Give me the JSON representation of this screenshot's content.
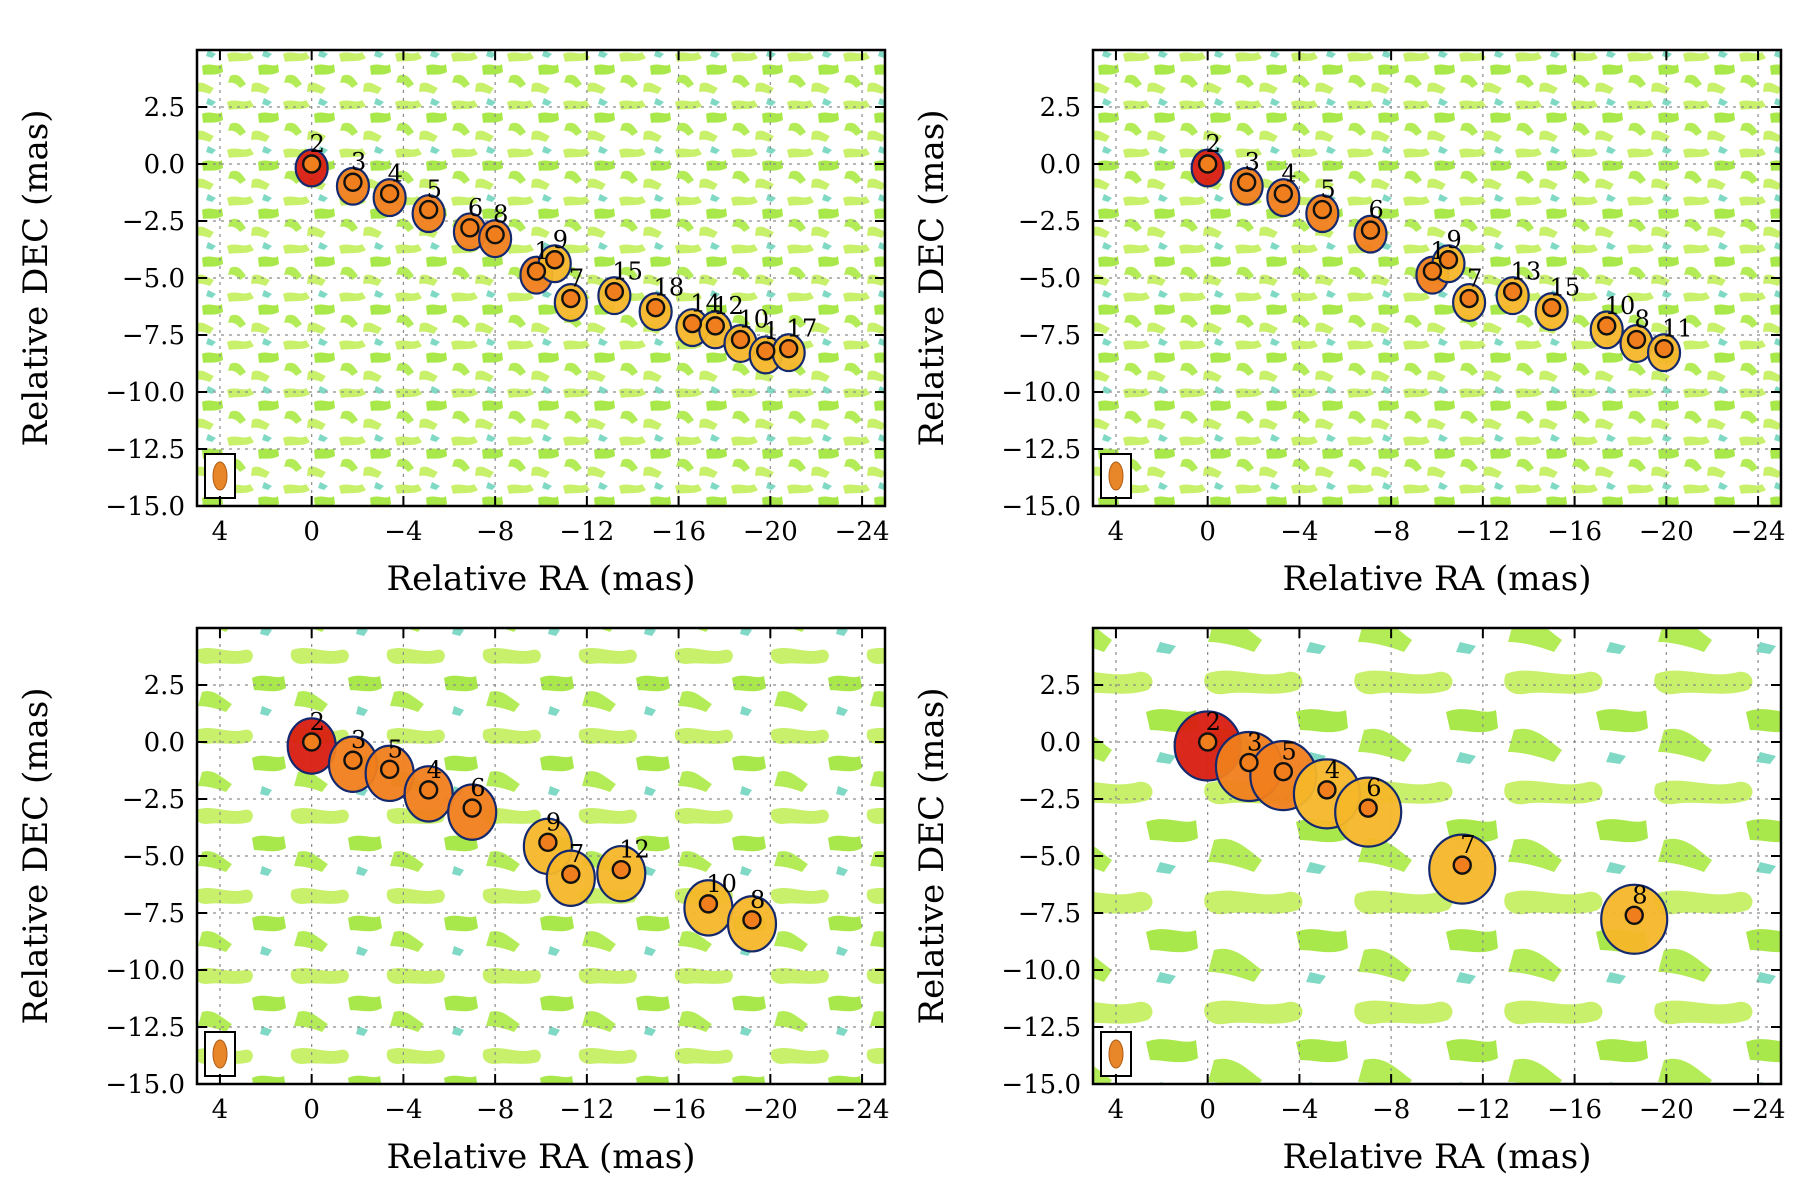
{
  "colors": {
    "noise_light": "#c8f06a",
    "noise_mid": "#a9e84a",
    "noise_cyan": "#7fd9c4",
    "jet_contour": "#14286e",
    "core_red": "#d81e10",
    "component_orange": "#f07e1c",
    "component_yellow": "#f5b629",
    "beam": "#e8872a"
  },
  "chart_data": [
    {
      "type": "scatter",
      "xlabel": "Relative RA (mas)",
      "ylabel": "Relative DEC (mas)",
      "xlim": [
        5,
        -25
      ],
      "ylim": [
        -15,
        5
      ],
      "xticks": [
        "4",
        "0",
        "−4",
        "−8",
        "−12",
        "−16",
        "−20",
        "−24"
      ],
      "yticks": [
        "2.5",
        "0.0",
        "−2.5",
        "−5.0",
        "−7.5",
        "−10.0",
        "−12.5",
        "−15.0"
      ],
      "grid": true,
      "components": [
        {
          "label": "2",
          "x": 0.0,
          "y": 0.0
        },
        {
          "label": "3",
          "x": -1.8,
          "y": -0.8
        },
        {
          "label": "4",
          "x": -3.4,
          "y": -1.3
        },
        {
          "label": "5",
          "x": -5.1,
          "y": -2.0
        },
        {
          "label": "6",
          "x": -6.9,
          "y": -2.8
        },
        {
          "label": "8",
          "x": -8.0,
          "y": -3.1
        },
        {
          "label": "1",
          "x": -9.8,
          "y": -4.7
        },
        {
          "label": "9",
          "x": -10.6,
          "y": -4.2
        },
        {
          "label": "7",
          "x": -11.3,
          "y": -5.9
        },
        {
          "label": "15",
          "x": -13.2,
          "y": -5.6
        },
        {
          "label": "18",
          "x": -15.0,
          "y": -6.3
        },
        {
          "label": "14",
          "x": -16.6,
          "y": -7.0
        },
        {
          "label": "12",
          "x": -17.6,
          "y": -7.1
        },
        {
          "label": "10",
          "x": -18.7,
          "y": -7.7
        },
        {
          "label": "1",
          "x": -19.8,
          "y": -8.2
        },
        {
          "label": "17",
          "x": -20.8,
          "y": -8.1
        }
      ]
    },
    {
      "type": "scatter",
      "xlabel": "Relative RA (mas)",
      "ylabel": "Relative DEC (mas)",
      "xlim": [
        5,
        -25
      ],
      "ylim": [
        -15,
        5
      ],
      "xticks": [
        "4",
        "0",
        "−4",
        "−8",
        "−12",
        "−16",
        "−20",
        "−24"
      ],
      "yticks": [
        "2.5",
        "0.0",
        "−2.5",
        "−5.0",
        "−7.5",
        "−10.0",
        "−12.5",
        "−15.0"
      ],
      "grid": true,
      "components": [
        {
          "label": "2",
          "x": 0.0,
          "y": 0.0
        },
        {
          "label": "3",
          "x": -1.7,
          "y": -0.8
        },
        {
          "label": "4",
          "x": -3.3,
          "y": -1.3
        },
        {
          "label": "5",
          "x": -5.0,
          "y": -2.0
        },
        {
          "label": "6",
          "x": -7.1,
          "y": -2.9
        },
        {
          "label": "1",
          "x": -9.8,
          "y": -4.7
        },
        {
          "label": "9",
          "x": -10.5,
          "y": -4.2
        },
        {
          "label": "7",
          "x": -11.4,
          "y": -5.9
        },
        {
          "label": "13",
          "x": -13.3,
          "y": -5.6
        },
        {
          "label": "15",
          "x": -15.0,
          "y": -6.3
        },
        {
          "label": "10",
          "x": -17.4,
          "y": -7.1
        },
        {
          "label": "8",
          "x": -18.7,
          "y": -7.7
        },
        {
          "label": "11",
          "x": -19.9,
          "y": -8.1
        }
      ]
    },
    {
      "type": "scatter",
      "xlabel": "Relative RA (mas)",
      "ylabel": "Relative DEC (mas)",
      "xlim": [
        5,
        -25
      ],
      "ylim": [
        -15,
        5
      ],
      "xticks": [
        "4",
        "0",
        "−4",
        "−8",
        "−12",
        "−16",
        "−20",
        "−24"
      ],
      "yticks": [
        "2.5",
        "0.0",
        "−2.5",
        "−5.0",
        "−7.5",
        "−10.0",
        "−12.5",
        "−15.0"
      ],
      "grid": true,
      "components": [
        {
          "label": "2",
          "x": 0.0,
          "y": 0.0
        },
        {
          "label": "3",
          "x": -1.8,
          "y": -0.8
        },
        {
          "label": "5",
          "x": -3.4,
          "y": -1.2
        },
        {
          "label": "4",
          "x": -5.1,
          "y": -2.1
        },
        {
          "label": "6",
          "x": -7.0,
          "y": -2.9
        },
        {
          "label": "9",
          "x": -10.3,
          "y": -4.4
        },
        {
          "label": "7",
          "x": -11.3,
          "y": -5.8
        },
        {
          "label": "12",
          "x": -13.5,
          "y": -5.6
        },
        {
          "label": "10",
          "x": -17.3,
          "y": -7.1
        },
        {
          "label": "8",
          "x": -19.2,
          "y": -7.8
        }
      ]
    },
    {
      "type": "scatter",
      "xlabel": "Relative RA (mas)",
      "ylabel": "Relative DEC (mas)",
      "xlim": [
        5,
        -25
      ],
      "ylim": [
        -15,
        5
      ],
      "xticks": [
        "4",
        "0",
        "−4",
        "−8",
        "−12",
        "−16",
        "−20",
        "−24"
      ],
      "yticks": [
        "2.5",
        "0.0",
        "−2.5",
        "−5.0",
        "−7.5",
        "−10.0",
        "−12.5",
        "−15.0"
      ],
      "grid": true,
      "components": [
        {
          "label": "2",
          "x": 0.0,
          "y": 0.0
        },
        {
          "label": "3",
          "x": -1.8,
          "y": -0.9
        },
        {
          "label": "5",
          "x": -3.3,
          "y": -1.3
        },
        {
          "label": "4",
          "x": -5.2,
          "y": -2.1
        },
        {
          "label": "6",
          "x": -7.0,
          "y": -2.9
        },
        {
          "label": "7",
          "x": -11.1,
          "y": -5.4
        },
        {
          "label": "8",
          "x": -18.6,
          "y": -7.6
        }
      ]
    }
  ]
}
